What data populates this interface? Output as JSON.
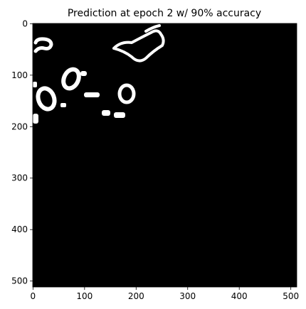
{
  "chart_data": {
    "type": "image",
    "title": "Prediction at epoch 2 w/ 90% accuracy",
    "xlim": [
      -0.5,
      511.5
    ],
    "ylim": [
      511.5,
      -0.5
    ],
    "xticks": [
      0,
      100,
      200,
      300,
      400,
      500
    ],
    "yticks": [
      0,
      100,
      200,
      300,
      400,
      500
    ]
  }
}
